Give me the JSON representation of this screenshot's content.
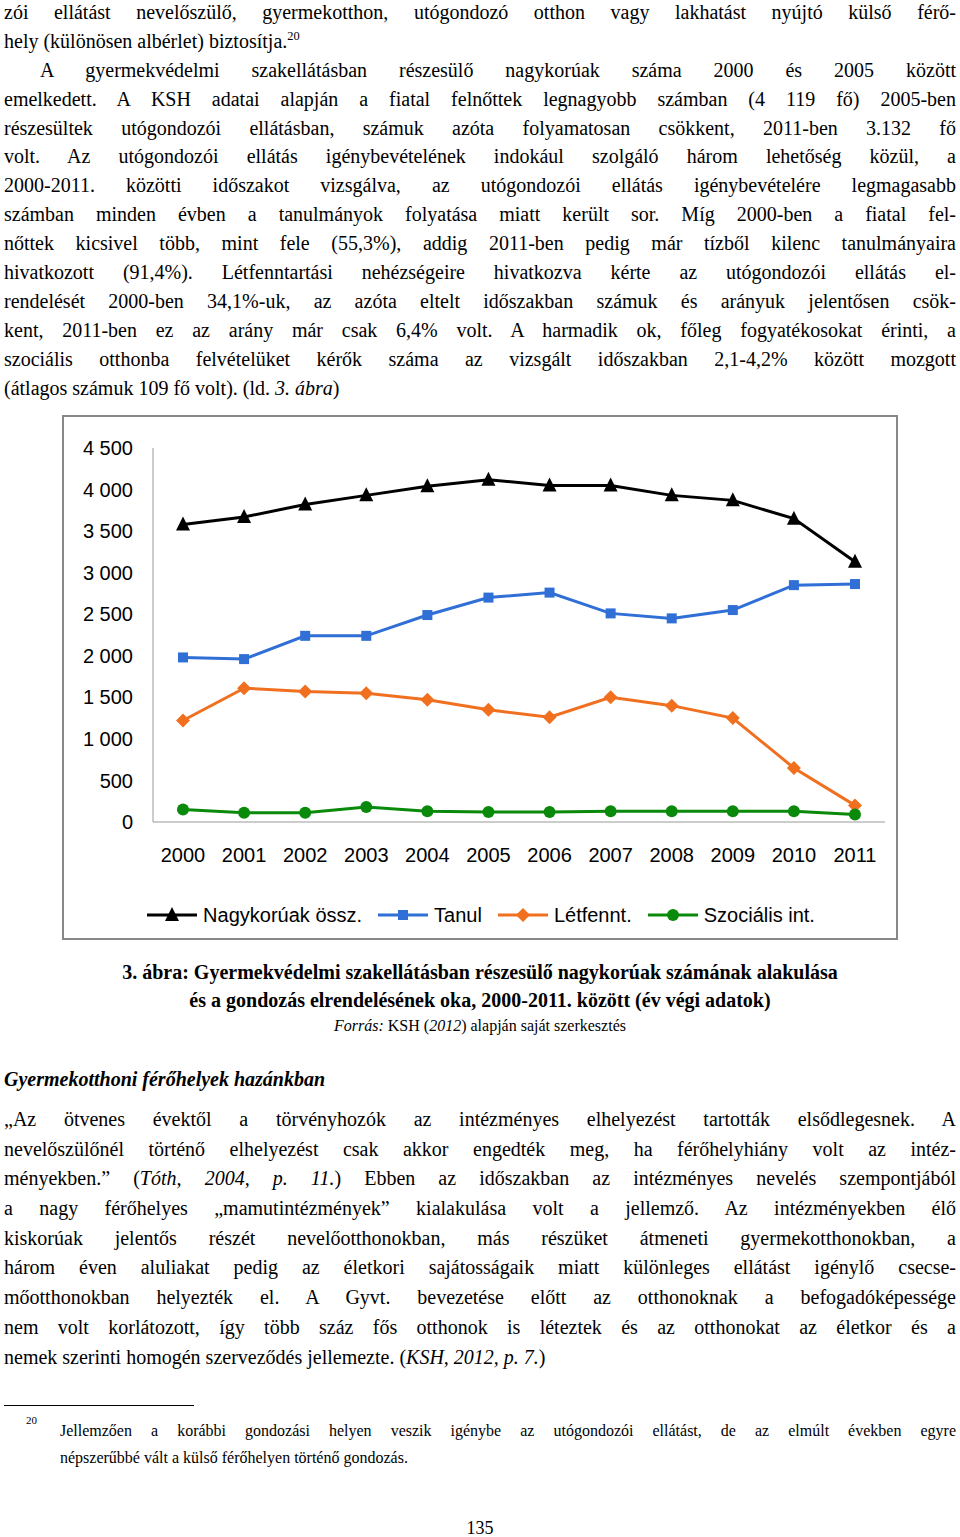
{
  "document": {
    "paragraphs_top": [
      {
        "lines": [
          [
            "zói ellátást nevelőszülő, gyermekotthon, utógondozó otthon vagy lakhatást nyújtó külső férő-"
          ],
          [
            {
              "text": "hely (különösen albérlet) biztosítja."
            },
            {
              "text": "20",
              "sup": true
            }
          ]
        ]
      },
      {
        "lines": [
          [
            "A gyermekvédelmi szakellátásban részesülő nagykorúak száma 2000 és 2005 között"
          ],
          [
            "emelkedett. A KSH adatai alapján a fiatal felnőttek legnagyobb számban (4 119 fő) 2005-ben"
          ],
          [
            "részesültek utógondozói ellátásban, számuk azóta folyamatosan csökkent, 2011-ben 3.132 fő"
          ],
          [
            "volt. Az utógondozói ellátás igénybevételének indokául szolgáló három lehetőség közül, a"
          ],
          [
            "2000-2011. közötti időszakot vizsgálva, az utógondozói ellátás igénybevételére legmagasabb"
          ],
          [
            "számban minden évben a tanulmányok folyatása miatt került sor. Míg 2000-ben a fiatal fel-"
          ],
          [
            "nőttek kicsivel több, mint fele (55,3%), addig 2011-ben pedig már tízből kilenc tanulmányaira"
          ],
          [
            "hivatkozott (91,4%). Létfenntartási nehézségeire hivatkozva kérte az utógondozói ellátás el-"
          ],
          [
            "rendelését 2000-ben 34,1%-uk, az azóta eltelt időszakban számuk és arányuk jelentősen csök-"
          ],
          [
            "kent, 2011-ben ez az arány már csak 6,4% volt. A harmadik ok, főleg fogyatékosokat érinti, a"
          ],
          [
            "szociális otthonba felvételüket kérők száma az vizsgált időszakban 2,1-4,2% között mozgott"
          ],
          [
            {
              "text": "(átlagos számuk 109 fő volt). (ld. "
            },
            {
              "text": "3. ábra",
              "italic": true
            },
            {
              "text": ")"
            }
          ]
        ]
      }
    ],
    "figure_caption": {
      "lines": [
        "3. ábra: Gyermekvédelmi szakellátásban részesülő nagykorúak számának alakulása",
        "és a gondozás elrendelésének oka, 2000-2011. között (év végi adatok)"
      ],
      "source": [
        {
          "text": "Forrás:",
          "italic": true
        },
        {
          "text": " KSH ("
        },
        {
          "text": "2012",
          "italic": true
        },
        {
          "text": ") alapján saját szerkesztés"
        }
      ]
    },
    "heading": "Gyermekotthoni férőhelyek hazánkban",
    "paragraphs_bottom": [
      {
        "lines": [
          [
            "„Az ötvenes évektől a törvényhozók az intézményes elhelyezést tartották elsődlegesnek. A"
          ],
          [
            "nevelőszülőnél történő elhelyezést csak akkor engedték meg, ha férőhelyhiány volt az intéz-"
          ],
          [
            {
              "text": "ményekben.” ("
            },
            {
              "text": "Tóth, 2004, p. 11.",
              "italic": true
            },
            {
              "text": ") Ebben az időszakban az intézményes nevelés szempontjából"
            }
          ],
          [
            "a nagy férőhelyes „mamutintézmények” kialakulása volt a jellemző. Az intézményekben élő"
          ],
          [
            "kiskorúak jelentős részét nevelőotthonokban, más részüket átmeneti gyermekotthonokban, a"
          ],
          [
            "három éven aluliakat pedig az életkori sajátosságaik miatt különleges ellátást igénylő csecse-"
          ],
          [
            "mőotthonokban helyezték el. A Gyvt. bevezetése előtt az otthonoknak a befogadóképessége"
          ],
          [
            "nem volt korlátozott, így több száz fős otthonok is léteztek és az otthonokat az életkor és a"
          ],
          [
            {
              "text": "nemek szerinti homogén szerveződés jellemezte. ("
            },
            {
              "text": "KSH, 2012, p. 7.",
              "italic": true
            },
            {
              "text": ")"
            }
          ]
        ]
      }
    ],
    "footnote": {
      "mark": "20",
      "lines": [
        "Jellemzően a korábbi gondozási helyen veszik igénybe az utógondozói ellátást, de az elmúlt években egyre",
        "népszerűbbé vált a külső férőhelyen történő gondozás."
      ]
    },
    "page_number": "135"
  },
  "chart_data": {
    "type": "line",
    "categories": [
      "2000",
      "2001",
      "2002",
      "2003",
      "2004",
      "2005",
      "2006",
      "2007",
      "2008",
      "2009",
      "2010",
      "2011"
    ],
    "ylim": [
      0,
      4500
    ],
    "yticks": [
      0,
      500,
      {
        "value": 1000,
        "label": "1 000"
      },
      {
        "value": 1500,
        "label": "1 500"
      },
      {
        "value": 2000,
        "label": "2 000"
      },
      {
        "value": 2500,
        "label": "2 500"
      },
      {
        "value": 3000,
        "label": "3 000"
      },
      {
        "value": 3500,
        "label": "3 500"
      },
      {
        "value": 4000,
        "label": "4 000"
      },
      {
        "value": 4500,
        "label": "4 500"
      }
    ],
    "grid": false,
    "legend": "bottom",
    "series": [
      {
        "name": "Nagykorúak össz.",
        "color": "#000000",
        "marker": "triangle",
        "values": [
          3580,
          3670,
          3820,
          3930,
          4040,
          4119,
          4050,
          4050,
          3930,
          3870,
          3650,
          3132
        ]
      },
      {
        "name": "Tanul",
        "color": "#2f6fd6",
        "marker": "square",
        "values": [
          1980,
          1960,
          2240,
          2240,
          2490,
          2700,
          2760,
          2510,
          2450,
          2550,
          2850,
          2863
        ]
      },
      {
        "name": "Létfennt.",
        "color": "#f07020",
        "marker": "diamond",
        "values": [
          1221,
          1610,
          1570,
          1550,
          1470,
          1350,
          1260,
          1500,
          1400,
          1250,
          650,
          200
        ]
      },
      {
        "name": "Szociális int.",
        "color": "#0a8a0a",
        "marker": "circle",
        "values": [
          150,
          110,
          110,
          180,
          130,
          120,
          120,
          130,
          130,
          130,
          130,
          90
        ]
      }
    ]
  }
}
